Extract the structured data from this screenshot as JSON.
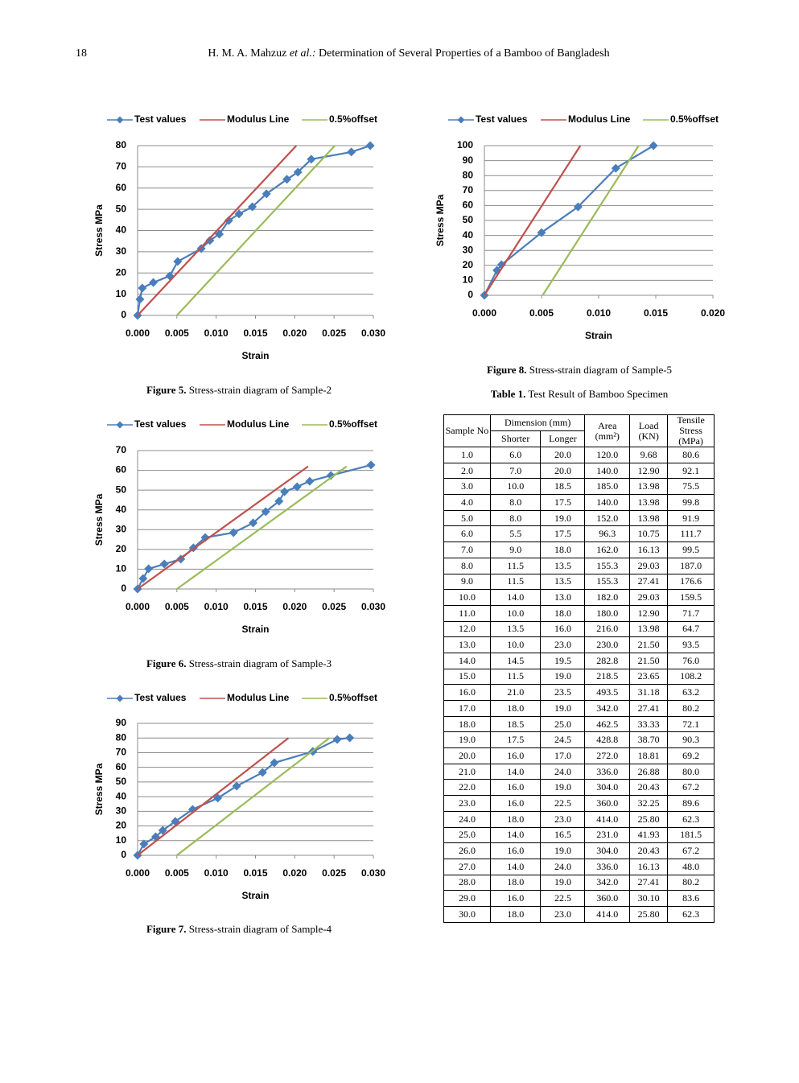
{
  "header": {
    "page_number": "18",
    "authors": "H. M. A. Mahzuz",
    "etal": "et al.:",
    "title": "Determination of Several Properties of a Bamboo of Bangladesh"
  },
  "chart_data": [
    {
      "type": "line",
      "caption_label": "Figure 5.",
      "caption": "Stress-strain diagram of Sample-2",
      "x_label": "Strain",
      "y_label": "Stress MPa",
      "legend": "top",
      "grid": true,
      "xlim": [
        0,
        0.03
      ],
      "xticks": [
        {
          "value": 0,
          "label": "0.000"
        },
        {
          "value": 0.005,
          "label": "0.005"
        },
        {
          "value": 0.01,
          "label": "0.010"
        },
        {
          "value": 0.015,
          "label": "0.015"
        },
        {
          "value": 0.02,
          "label": "0.020"
        },
        {
          "value": 0.025,
          "label": "0.025"
        },
        {
          "value": 0.03,
          "label": "0.030"
        }
      ],
      "ylim": [
        0,
        80
      ],
      "yticks": [
        0,
        10,
        20,
        30,
        40,
        50,
        60,
        70,
        80
      ],
      "series": [
        {
          "name": "Test values",
          "color": "#4a7ebb",
          "marker": "diamond",
          "x": [
            0,
            0.0003,
            0.0006,
            0.002,
            0.0041,
            0.0051,
            0.0081,
            0.0092,
            0.0104,
            0.0116,
            0.0129,
            0.0146,
            0.0164,
            0.019,
            0.0204,
            0.0221,
            0.0272,
            0.0296
          ],
          "values": [
            0,
            7.6,
            12.9,
            15.5,
            18.6,
            25.4,
            31.5,
            35.3,
            38.3,
            44.7,
            47.8,
            51.2,
            57.3,
            64.1,
            67.5,
            73.6,
            77,
            80
          ]
        },
        {
          "name": "Modulus Line",
          "color": "#c0504d",
          "x": [
            0,
            0.0202
          ],
          "values": [
            0,
            80
          ]
        },
        {
          "name": "0.5%offset",
          "color": "#9bbb59",
          "x": [
            0.005,
            0.0251
          ],
          "values": [
            0,
            80
          ]
        }
      ]
    },
    {
      "type": "line",
      "caption_label": "Figure 8.",
      "caption": "Stress-strain diagram of Sample-5",
      "x_label": "Strain",
      "y_label": "Stress MPa",
      "legend": "top",
      "grid": true,
      "xlim": [
        0,
        0.02
      ],
      "xticks": [
        {
          "value": 0,
          "label": "0.000"
        },
        {
          "value": 0.005,
          "label": "0.005"
        },
        {
          "value": 0.01,
          "label": "0.010"
        },
        {
          "value": 0.015,
          "label": "0.015"
        },
        {
          "value": 0.02,
          "label": "0.020"
        }
      ],
      "ylim": [
        0,
        100
      ],
      "yticks": [
        0,
        10,
        20,
        30,
        40,
        50,
        60,
        70,
        80,
        90,
        100
      ],
      "series": [
        {
          "name": "Test values",
          "color": "#4a7ebb",
          "marker": "diamond",
          "x": [
            0,
            0.0011,
            0.0015,
            0.005,
            0.0082,
            0.0115,
            0.0148
          ],
          "values": [
            0,
            16.7,
            20.4,
            41.9,
            59.1,
            84.9,
            100
          ]
        },
        {
          "name": "Modulus Line",
          "color": "#c0504d",
          "x": [
            0,
            0.0084
          ],
          "values": [
            0,
            100
          ]
        },
        {
          "name": "0.5%offset",
          "color": "#9bbb59",
          "x": [
            0.0051,
            0.0135
          ],
          "values": [
            0,
            100
          ]
        }
      ]
    },
    {
      "type": "line",
      "caption_label": "Figure 6.",
      "caption": "Stress-strain diagram of Sample-3",
      "x_label": "Strain",
      "y_label": "Stress MPa",
      "legend": "top",
      "grid": true,
      "xlim": [
        0,
        0.03
      ],
      "xticks": [
        {
          "value": 0,
          "label": "0.000"
        },
        {
          "value": 0.005,
          "label": "0.005"
        },
        {
          "value": 0.01,
          "label": "0.010"
        },
        {
          "value": 0.015,
          "label": "0.015"
        },
        {
          "value": 0.02,
          "label": "0.020"
        },
        {
          "value": 0.025,
          "label": "0.025"
        },
        {
          "value": 0.03,
          "label": "0.030"
        }
      ],
      "ylim": [
        0,
        70
      ],
      "yticks": [
        0,
        10,
        20,
        30,
        40,
        50,
        60,
        70
      ],
      "series": [
        {
          "name": "Test values",
          "color": "#4a7ebb",
          "marker": "diamond",
          "x": [
            0,
            0.0007,
            0.0014,
            0.0034,
            0.0055,
            0.0071,
            0.0086,
            0.0122,
            0.0147,
            0.0163,
            0.018,
            0.0187,
            0.0203,
            0.0219,
            0.0246,
            0.0297
          ],
          "values": [
            0,
            5.3,
            10.2,
            12.6,
            15.1,
            20.8,
            26,
            28.5,
            33.4,
            39.1,
            44.4,
            49.2,
            51.7,
            54.5,
            57.4,
            62.7
          ]
        },
        {
          "name": "Modulus Line",
          "color": "#c0504d",
          "x": [
            0,
            0.0217
          ],
          "values": [
            0,
            62
          ]
        },
        {
          "name": "0.5%offset",
          "color": "#9bbb59",
          "x": [
            0.005,
            0.0266
          ],
          "values": [
            0,
            62
          ]
        }
      ]
    },
    {
      "type": "line",
      "caption_label": "Figure 7.",
      "caption": "Stress-strain diagram of Sample-4",
      "x_label": "Strain",
      "y_label": "Stress MPa",
      "legend": "top",
      "grid": true,
      "xlim": [
        0,
        0.03
      ],
      "xticks": [
        {
          "value": 0,
          "label": "0.000"
        },
        {
          "value": 0.005,
          "label": "0.005"
        },
        {
          "value": 0.01,
          "label": "0.010"
        },
        {
          "value": 0.015,
          "label": "0.015"
        },
        {
          "value": 0.02,
          "label": "0.020"
        },
        {
          "value": 0.025,
          "label": "0.025"
        },
        {
          "value": 0.03,
          "label": "0.030"
        }
      ],
      "ylim": [
        0,
        90
      ],
      "yticks": [
        0,
        10,
        20,
        30,
        40,
        50,
        60,
        70,
        80,
        90
      ],
      "series": [
        {
          "name": "Test values",
          "color": "#4a7ebb",
          "marker": "diamond",
          "x": [
            0,
            0.0008,
            0.0023,
            0.0032,
            0.0048,
            0.007,
            0.0102,
            0.0126,
            0.0159,
            0.0174,
            0.0223,
            0.0254,
            0.027
          ],
          "values": [
            0,
            7.7,
            12.6,
            17,
            23.1,
            31.3,
            39,
            47.2,
            56.5,
            63.1,
            70.8,
            79,
            80.1
          ]
        },
        {
          "name": "Modulus Line",
          "color": "#c0504d",
          "x": [
            0,
            0.0192
          ],
          "values": [
            0,
            80
          ]
        },
        {
          "name": "0.5%offset",
          "color": "#9bbb59",
          "x": [
            0.005,
            0.0244
          ],
          "values": [
            0,
            80
          ]
        }
      ]
    }
  ],
  "table": {
    "caption_label": "Table 1.",
    "caption": "Test Result of Bamboo Specimen",
    "columns": [
      "Sample No",
      "Dimension (mm)",
      "Shorter",
      "Longer",
      "Area (mm²)",
      "Load (KN)",
      "Tensile Stress (MPa)"
    ],
    "rows": [
      [
        "1.0",
        "6.0",
        "20.0",
        "120.0",
        "9.68",
        "80.6"
      ],
      [
        "2.0",
        "7.0",
        "20.0",
        "140.0",
        "12.90",
        "92.1"
      ],
      [
        "3.0",
        "10.0",
        "18.5",
        "185.0",
        "13.98",
        "75.5"
      ],
      [
        "4.0",
        "8.0",
        "17.5",
        "140.0",
        "13.98",
        "99.8"
      ],
      [
        "5.0",
        "8.0",
        "19.0",
        "152.0",
        "13.98",
        "91.9"
      ],
      [
        "6.0",
        "5.5",
        "17.5",
        "96.3",
        "10.75",
        "111.7"
      ],
      [
        "7.0",
        "9.0",
        "18.0",
        "162.0",
        "16.13",
        "99.5"
      ],
      [
        "8.0",
        "11.5",
        "13.5",
        "155.3",
        "29.03",
        "187.0"
      ],
      [
        "9.0",
        "11.5",
        "13.5",
        "155.3",
        "27.41",
        "176.6"
      ],
      [
        "10.0",
        "14.0",
        "13.0",
        "182.0",
        "29.03",
        "159.5"
      ],
      [
        "11.0",
        "10.0",
        "18.0",
        "180.0",
        "12.90",
        "71.7"
      ],
      [
        "12.0",
        "13.5",
        "16.0",
        "216.0",
        "13.98",
        "64.7"
      ],
      [
        "13.0",
        "10.0",
        "23.0",
        "230.0",
        "21.50",
        "93.5"
      ],
      [
        "14.0",
        "14.5",
        "19.5",
        "282.8",
        "21.50",
        "76.0"
      ],
      [
        "15.0",
        "11.5",
        "19.0",
        "218.5",
        "23.65",
        "108.2"
      ],
      [
        "16.0",
        "21.0",
        "23.5",
        "493.5",
        "31.18",
        "63.2"
      ],
      [
        "17.0",
        "18.0",
        "19.0",
        "342.0",
        "27.41",
        "80.2"
      ],
      [
        "18.0",
        "18.5",
        "25.0",
        "462.5",
        "33.33",
        "72.1"
      ],
      [
        "19.0",
        "17.5",
        "24.5",
        "428.8",
        "38.70",
        "90.3"
      ],
      [
        "20.0",
        "16.0",
        "17.0",
        "272.0",
        "18.81",
        "69.2"
      ],
      [
        "21.0",
        "14.0",
        "24.0",
        "336.0",
        "26.88",
        "80.0"
      ],
      [
        "22.0",
        "16.0",
        "19.0",
        "304.0",
        "20.43",
        "67.2"
      ],
      [
        "23.0",
        "16.0",
        "22.5",
        "360.0",
        "32.25",
        "89.6"
      ],
      [
        "24.0",
        "18.0",
        "23.0",
        "414.0",
        "25.80",
        "62.3"
      ],
      [
        "25.0",
        "14.0",
        "16.5",
        "231.0",
        "41.93",
        "181.5"
      ],
      [
        "26.0",
        "16.0",
        "19.0",
        "304.0",
        "20.43",
        "67.2"
      ],
      [
        "27.0",
        "14.0",
        "24.0",
        "336.0",
        "16.13",
        "48.0"
      ],
      [
        "28.0",
        "18.0",
        "19.0",
        "342.0",
        "27.41",
        "80.2"
      ],
      [
        "29.0",
        "16.0",
        "22.5",
        "360.0",
        "30.10",
        "83.6"
      ],
      [
        "30.0",
        "18.0",
        "23.0",
        "414.0",
        "25.80",
        "62.3"
      ]
    ]
  }
}
